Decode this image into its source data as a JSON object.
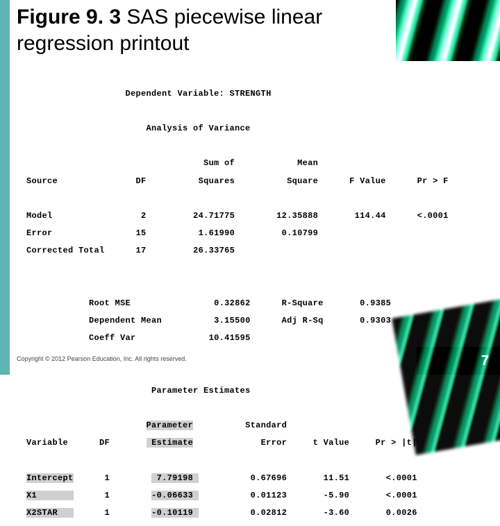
{
  "title_bold": "Figure 9. 3",
  "title_rest": "  SAS piecewise linear regression printout",
  "dep_var_line": "Dependent Variable: STRENGTH",
  "anova_title": "Analysis of Variance",
  "anova": {
    "headers": {
      "source": "Source",
      "df": "DF",
      "ss1": "Sum of",
      "ss2": "Squares",
      "ms1": "Mean",
      "ms2": "Square",
      "f": "F Value",
      "p": "Pr > F"
    },
    "rows": [
      {
        "source": "Model",
        "df": "2",
        "ss": "24.71775",
        "ms": "12.35888",
        "f": "114.44",
        "p": "<.0001"
      },
      {
        "source": "Error",
        "df": "15",
        "ss": "1.61990",
        "ms": "0.10799",
        "f": "",
        "p": ""
      },
      {
        "source": "Corrected Total",
        "df": "17",
        "ss": "26.33765",
        "ms": "",
        "f": "",
        "p": ""
      }
    ]
  },
  "fit": {
    "root_mse_label": "Root MSE",
    "root_mse": "0.32862",
    "r2_label": "R-Square",
    "r2": "0.9385",
    "depmean_label": "Dependent Mean",
    "depmean": "3.15500",
    "adjr2_label": "Adj R-Sq",
    "adjr2": "0.9303",
    "cv_label": "Coeff Var",
    "cv": "10.41595"
  },
  "param_title": "Parameter Estimates",
  "param_headers": {
    "var": "Variable",
    "df": "DF",
    "est1": "Parameter",
    "est2": "Estimate",
    "se1": "Standard",
    "se2": "Error",
    "t": "t Value",
    "p": "Pr > |t|"
  },
  "param_rows": [
    {
      "var": "Intercept",
      "df": "1",
      "est": "7.79198",
      "se": "0.67696",
      "t": "11.51",
      "p": "<.0001"
    },
    {
      "var": "X1",
      "df": "1",
      "est": "-0.06633",
      "se": "0.01123",
      "t": "-5.90",
      "p": "<.0001"
    },
    {
      "var": "X2STAR",
      "df": "1",
      "est": "-0.10119",
      "se": "0.02812",
      "t": "-3.60",
      "p": "0.0026"
    }
  ],
  "copyright": "Copyright © 2012 Pearson Education, Inc. All rights reserved.",
  "page_number": "7",
  "colors": {
    "left_bar": "#5fb4b4",
    "highlight": "#d0d0d0",
    "text": "#000000",
    "bg": "#ffffff"
  }
}
